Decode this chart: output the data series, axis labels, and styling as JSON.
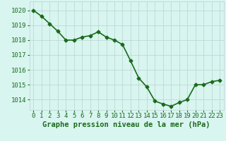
{
  "x": [
    0,
    1,
    2,
    3,
    4,
    5,
    6,
    7,
    8,
    9,
    10,
    11,
    12,
    13,
    14,
    15,
    16,
    17,
    18,
    19,
    20,
    21,
    22,
    23
  ],
  "y": [
    1020.0,
    1019.6,
    1019.1,
    1018.6,
    1018.0,
    1018.0,
    1018.2,
    1018.3,
    1018.55,
    1018.2,
    1018.0,
    1017.7,
    1016.6,
    1015.45,
    1014.85,
    1013.9,
    1013.7,
    1013.55,
    1013.8,
    1014.0,
    1015.0,
    1015.0,
    1015.2,
    1015.3
  ],
  "line_color": "#1a6b1a",
  "marker": "D",
  "marker_size": 2.5,
  "bg_color": "#d8f5f0",
  "grid_color": "#c0d8d4",
  "xlabel": "Graphe pression niveau de la mer (hPa)",
  "xlabel_color": "#1a6b1a",
  "xlabel_fontsize": 7.5,
  "tick_color": "#1a6b1a",
  "tick_fontsize": 6.5,
  "ytick_vals": [
    1014,
    1015,
    1016,
    1017,
    1018,
    1019,
    1020
  ],
  "ylim": [
    1013.3,
    1020.6
  ],
  "xlim": [
    -0.5,
    23.5
  ],
  "linewidth": 1.2
}
